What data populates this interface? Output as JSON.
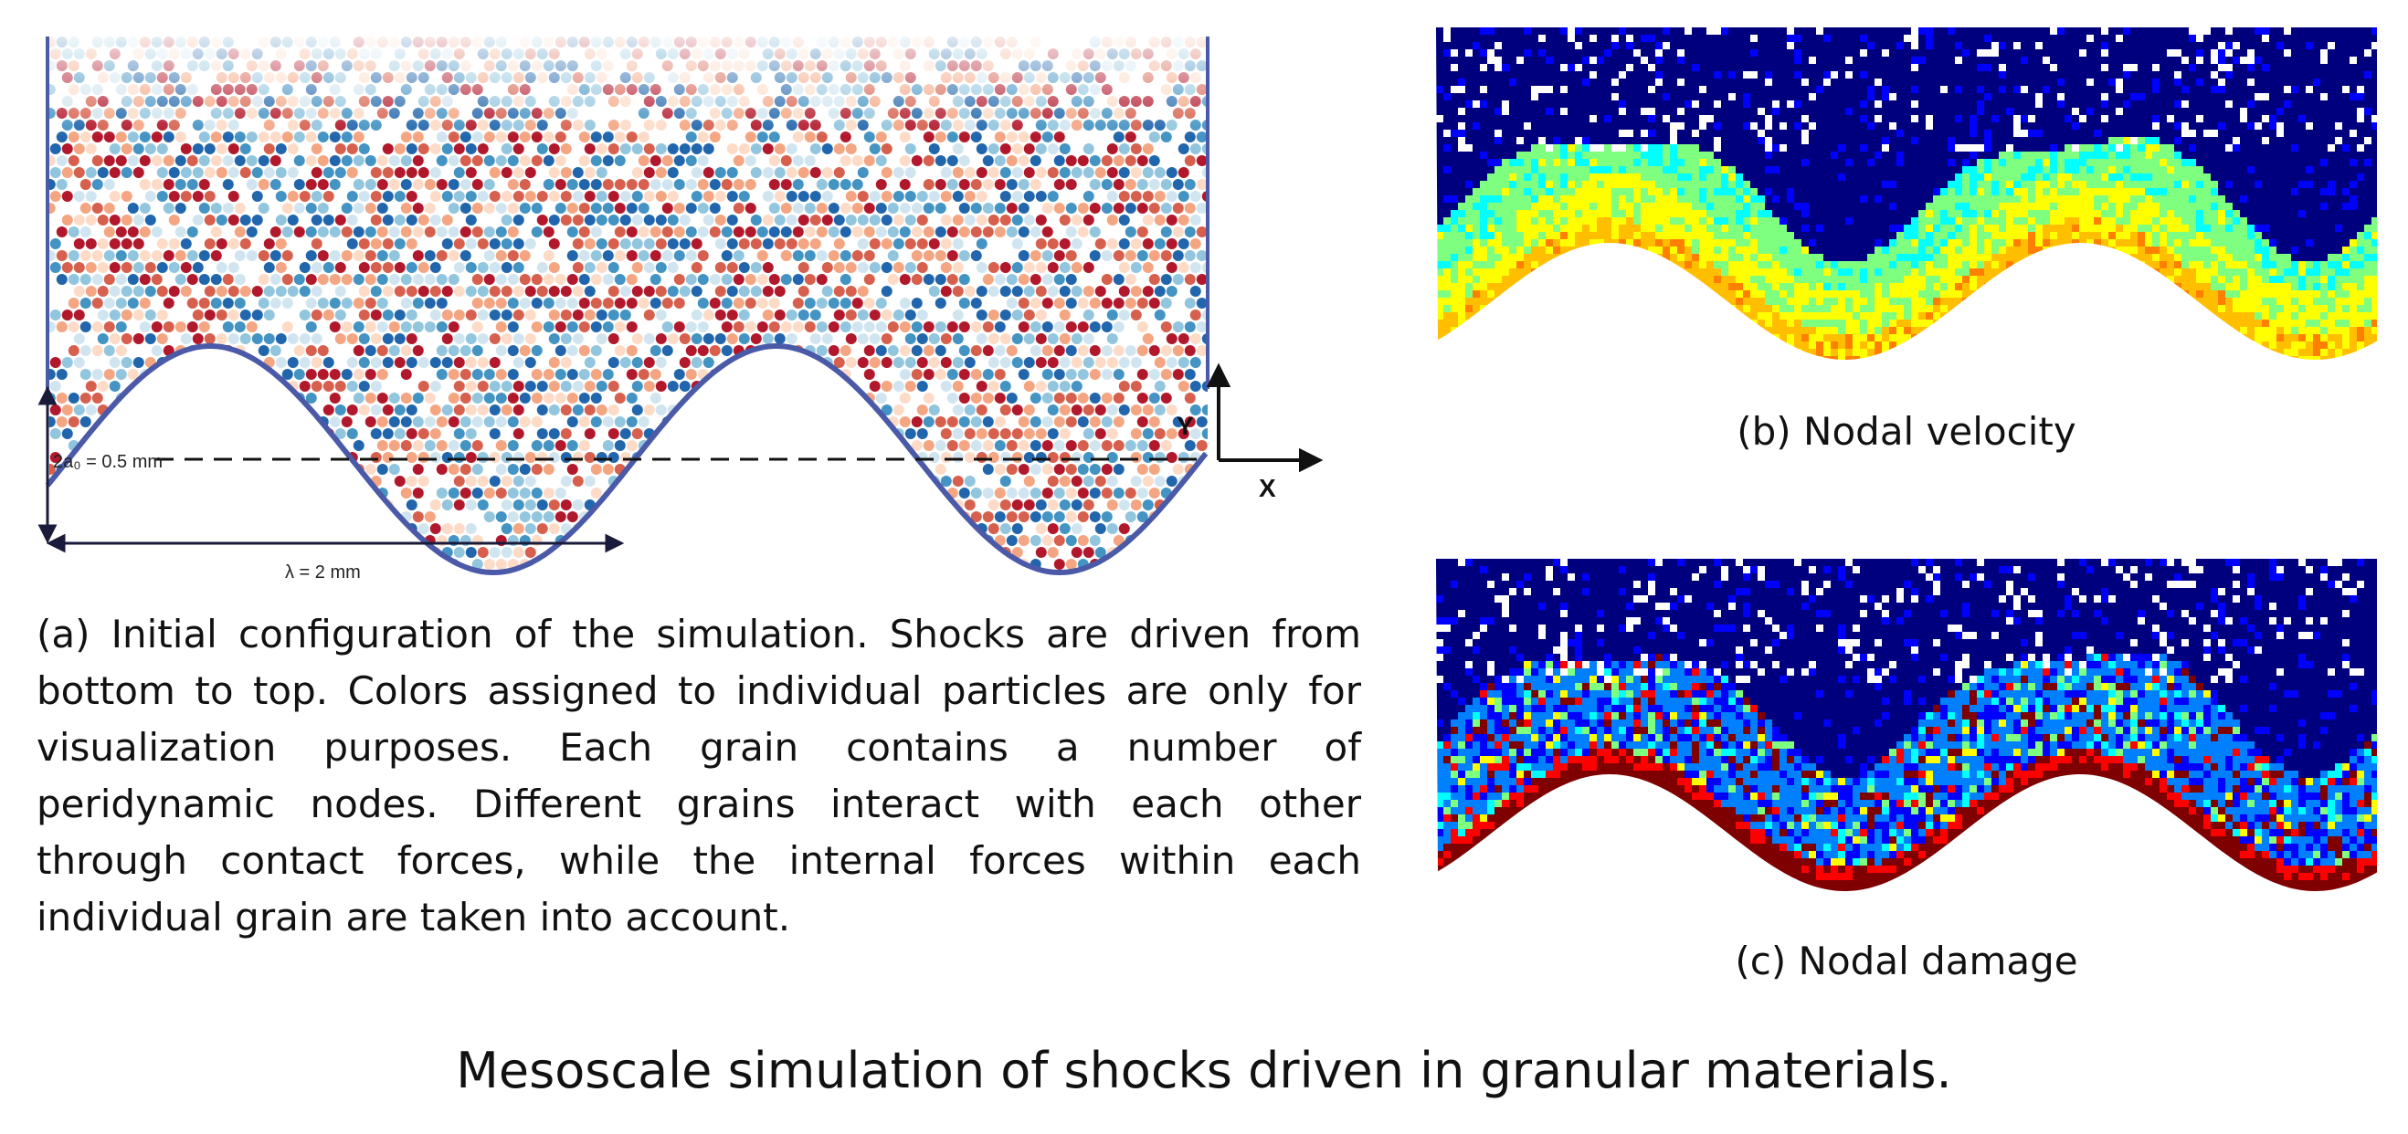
{
  "figure_a": {
    "amplitude_label": "2a₀ = 0.5 mm",
    "wavelength_label": "λ = 2 mm",
    "axis_x": "X",
    "axis_y": "Y",
    "particle_colors": [
      "#b2182b",
      "#d6604d",
      "#f4a582",
      "#fddbc7",
      "#d1e5f0",
      "#92c5de",
      "#4393c3",
      "#2166ac"
    ],
    "wall_color": "#4a5aa8"
  },
  "figure_b": {
    "colormap": [
      "#00007f",
      "#0000ff",
      "#007fff",
      "#00ffff",
      "#7fff7f",
      "#ffff00",
      "#ffbf00",
      "#ff7f00"
    ]
  },
  "figure_c": {
    "colormap": [
      "#00007f",
      "#0000ff",
      "#007fff",
      "#00ffff",
      "#7fff7f",
      "#ffff00",
      "#ff7f00",
      "#ff0000",
      "#7f0000"
    ]
  },
  "captions": {
    "a": "(a) Initial configuration of the simulation. Shocks are driven from bottom to top. Colors assigned to individual particles are only for visualization purposes. Each grain contains a number of peridynamic nodes. Different grains interact with each other through contact forces, while the internal forces within each individual grain are taken into account.",
    "b": "(b) Nodal velocity",
    "c": "(c) Nodal damage",
    "main": "Mesoscale simulation of shocks driven in granular materials."
  }
}
